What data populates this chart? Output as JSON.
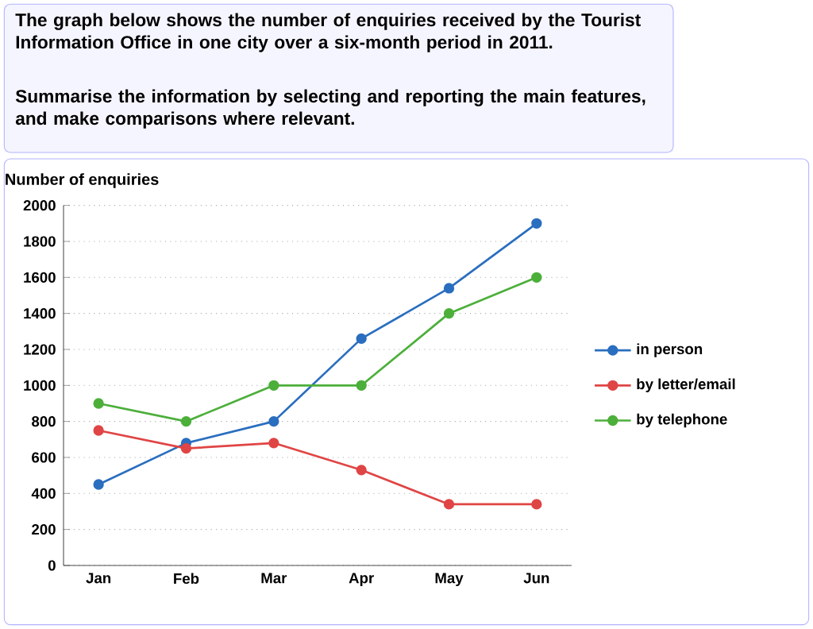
{
  "chart_data": {
    "type": "line",
    "title": "The graph below shows the number of enquiries received by the Tourist Information Office in one city over a six-month period in 2011.",
    "subtitle": "Summarise the information by selecting and reporting the main features, and make comparisons where relevant.",
    "ylabel": "Number of enquiries",
    "categories": [
      "Jan",
      "Feb",
      "Mar",
      "Apr",
      "May",
      "Jun"
    ],
    "series": [
      {
        "name": "in person",
        "color": "#2a6ebf",
        "values": [
          450,
          680,
          800,
          1260,
          1540,
          1900
        ]
      },
      {
        "name": "by letter/email",
        "color": "#e04545",
        "values": [
          750,
          650,
          680,
          530,
          340,
          340
        ]
      },
      {
        "name": "by telephone",
        "color": "#4caf3a",
        "values": [
          900,
          800,
          1000,
          1000,
          1400,
          1600
        ]
      }
    ],
    "ylim": [
      0,
      2000
    ],
    "yticks": [
      0,
      200,
      400,
      600,
      800,
      1000,
      1200,
      1400,
      1600,
      1800,
      2000
    ],
    "grid": "y",
    "legend": "right",
    "marker": "circle",
    "line_style": "solid"
  }
}
